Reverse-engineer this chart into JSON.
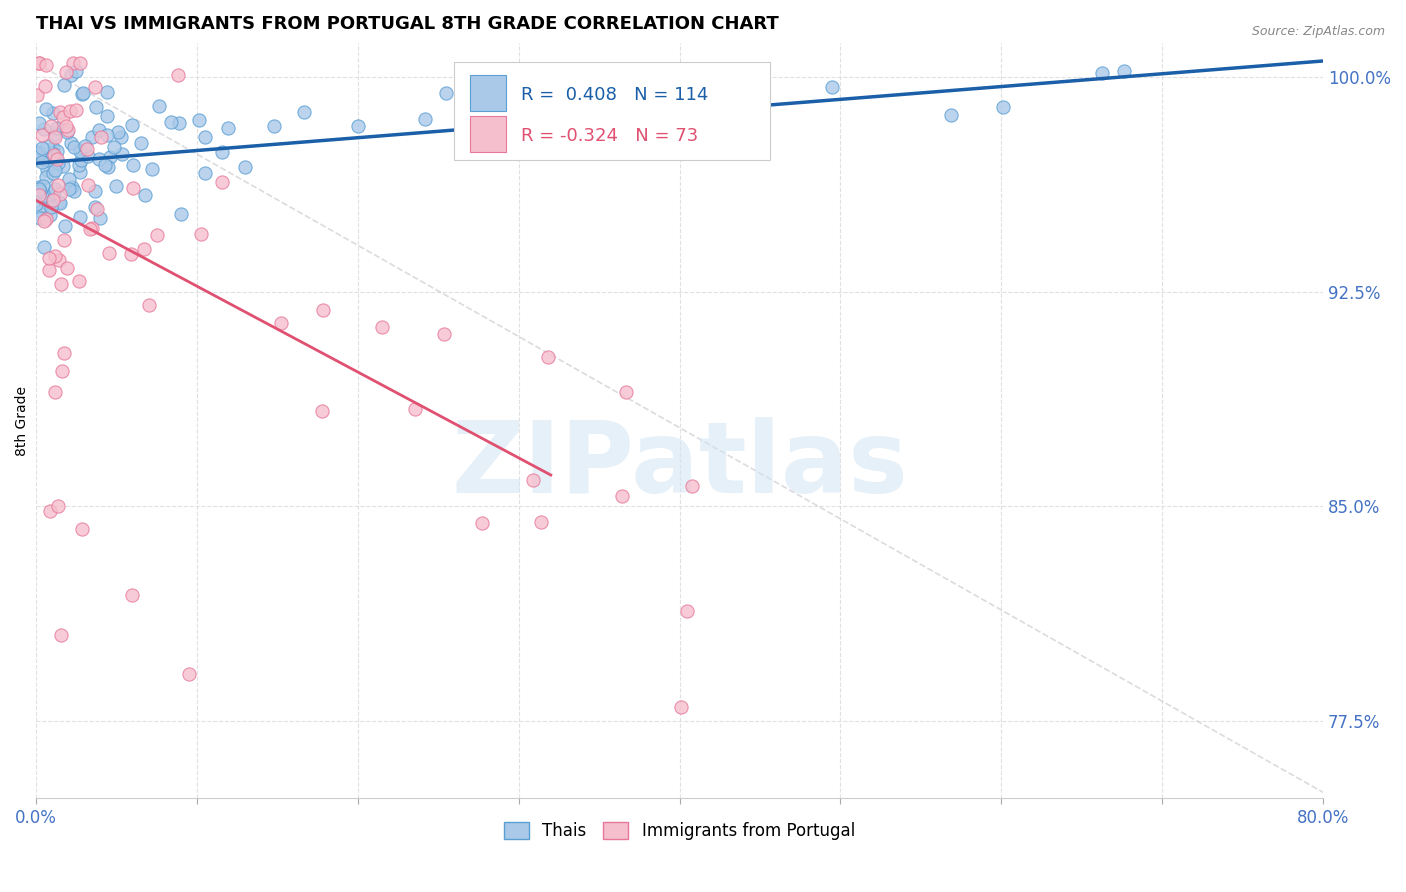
{
  "title": "THAI VS IMMIGRANTS FROM PORTUGAL 8TH GRADE CORRELATION CHART",
  "source": "Source: ZipAtlas.com",
  "ylabel": "8th Grade",
  "xlabel": "",
  "xlim": [
    0.0,
    0.8
  ],
  "ylim": [
    0.748,
    1.012
  ],
  "bg_color": "#ffffff",
  "grid_color": "#e0e0e0",
  "grid_linestyle": "--",
  "thai_color": "#aac9e8",
  "thai_edge_color": "#5a9fd4",
  "portugal_color": "#f5bfcd",
  "portugal_edge_color": "#e8789a",
  "trend_thai_color": "#1a5fa8",
  "trend_portugal_color": "#e05070",
  "diagonal_color": "#c8c8d0",
  "legend_thai_label": "Thais",
  "legend_portugal_label": "Immigrants from Portugal",
  "r_thai": 0.408,
  "n_thai": 114,
  "r_portugal": -0.324,
  "n_portugal": 73,
  "ytick_positions": [
    0.775,
    0.85,
    0.925,
    1.0
  ],
  "ytick_labels": [
    "77.5%",
    "85.0%",
    "92.5%",
    "100.0%"
  ],
  "xtick_positions": [
    0.0,
    0.1,
    0.2,
    0.3,
    0.4,
    0.5,
    0.6,
    0.7,
    0.8
  ],
  "xticklabels": [
    "0.0%",
    "",
    "",
    "",
    "",
    "",
    "",
    "",
    "80.0%"
  ],
  "scatter_size": 90,
  "scatter_alpha": 0.8,
  "title_fontsize": 13,
  "tick_fontsize": 12,
  "legend_fontsize": 12,
  "watermark_text": "ZIPatlas",
  "watermark_color": "#d0e4f5",
  "watermark_alpha": 0.55,
  "watermark_fontsize": 72
}
